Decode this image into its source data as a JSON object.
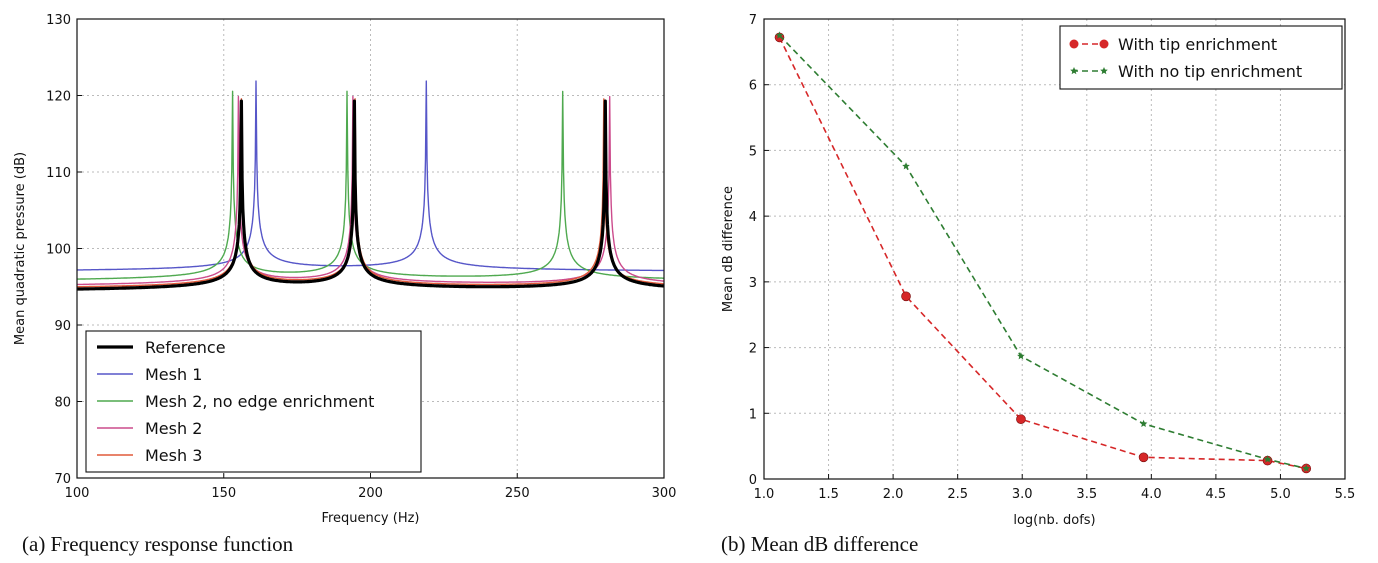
{
  "chart_data": [
    {
      "type": "line",
      "caption": "(a) Frequency response function",
      "xlabel": "Frequency (Hz)",
      "ylabel": "Mean quadratic pressure (dB)",
      "xlim": [
        100,
        300
      ],
      "ylim": [
        70,
        130
      ],
      "xticks": [
        100,
        150,
        200,
        250,
        300
      ],
      "yticks": [
        70,
        80,
        90,
        100,
        110,
        120,
        130
      ],
      "grid": true,
      "legend_position": "lower-left",
      "series": [
        {
          "name": "Reference",
          "color": "#000000",
          "width": "thick",
          "resonances": [
            156,
            194.5,
            280
          ],
          "baseline_at_100": 94.7
        },
        {
          "name": "Mesh 1",
          "color": "#5656c8",
          "resonances": [
            161,
            219
          ],
          "baseline_at_100": 97.2
        },
        {
          "name": "Mesh 2, no edge enrichment",
          "color": "#4fa94f",
          "resonances": [
            153,
            192,
            265.5
          ],
          "baseline_at_100": 96.0
        },
        {
          "name": "Mesh 2",
          "color": "#cc4b8c",
          "resonances": [
            155,
            194,
            281.5
          ],
          "baseline_at_100": 95.3
        },
        {
          "name": "Mesh 3",
          "color": "#e05a3a",
          "resonances": [
            156,
            194.7,
            279.5
          ],
          "baseline_at_100": 95.0
        }
      ]
    },
    {
      "type": "line",
      "caption": "(b) Mean dB difference",
      "xlabel": "log(nb. dofs)",
      "ylabel": "Mean dB difference",
      "xlim": [
        1.0,
        5.5
      ],
      "ylim": [
        0,
        7
      ],
      "xticks": [
        "1.0",
        "1.5",
        "2.0",
        "2.5",
        "3.0",
        "3.5",
        "4.0",
        "4.5",
        "5.0",
        "5.5"
      ],
      "yticks": [
        "0",
        "1",
        "2",
        "3",
        "4",
        "5",
        "6",
        "7"
      ],
      "grid": true,
      "legend_position": "top-right",
      "series": [
        {
          "name": "With tip enrichment",
          "color": "#d62728",
          "marker": "circle",
          "x": [
            1.12,
            2.1,
            2.99,
            3.94,
            4.9,
            5.2
          ],
          "y": [
            6.72,
            2.78,
            0.91,
            0.33,
            0.28,
            0.16
          ]
        },
        {
          "name": "With no tip enrichment",
          "color": "#2e7d32",
          "marker": "star",
          "x": [
            1.12,
            2.1,
            2.99,
            3.94,
            4.9,
            5.2
          ],
          "y": [
            6.75,
            4.76,
            1.87,
            0.84,
            0.3,
            0.16
          ]
        }
      ]
    }
  ]
}
